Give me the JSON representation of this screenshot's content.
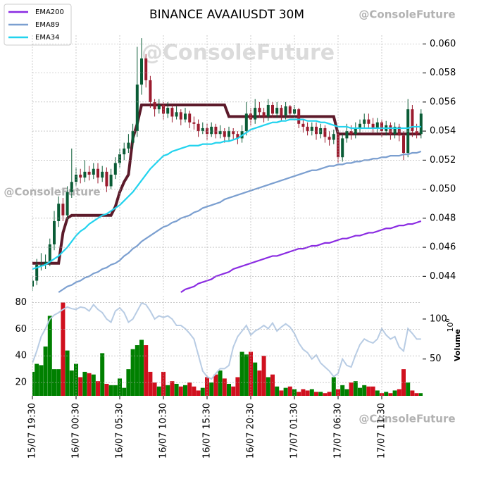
{
  "chart_data": {
    "type": "candlestick",
    "title": "BINANCE AVAAIUSDT 30M",
    "categories": [
      "15/07 19:30",
      null,
      null,
      null,
      null,
      null,
      null,
      null,
      null,
      null,
      "16/07 00:30",
      null,
      null,
      null,
      null,
      null,
      null,
      null,
      null,
      null,
      "16/07 05:30",
      null,
      null,
      null,
      null,
      null,
      null,
      null,
      null,
      null,
      "16/07 10:30",
      null,
      null,
      null,
      null,
      null,
      null,
      null,
      null,
      null,
      "16/07 15:30",
      null,
      null,
      null,
      null,
      null,
      null,
      null,
      null,
      null,
      "16/07 20:30",
      null,
      null,
      null,
      null,
      null,
      null,
      null,
      null,
      null,
      "17/07 01:30",
      null,
      null,
      null,
      null,
      null,
      null,
      null,
      null,
      null,
      "17/07 06:30",
      null,
      null,
      null,
      null,
      null,
      null,
      null,
      null,
      null,
      "17/07 11:30",
      null,
      null,
      null,
      null,
      null,
      null,
      null,
      null,
      null
    ],
    "open": [
      0.0433,
      0.0437,
      0.0448,
      0.0448,
      0.045,
      0.0462,
      0.0478,
      0.049,
      0.0482,
      0.0498,
      0.0505,
      0.051,
      0.0508,
      0.0512,
      0.051,
      0.0514,
      0.0508,
      0.0512,
      0.0502,
      0.051,
      0.0518,
      0.0524,
      0.0528,
      0.0532,
      0.054,
      0.0572,
      0.059,
      0.0575,
      0.056,
      0.0555,
      0.0558,
      0.0552,
      0.0556,
      0.055,
      0.0553,
      0.0548,
      0.0552,
      0.0546,
      0.0545,
      0.054,
      0.0542,
      0.0538,
      0.0543,
      0.0538,
      0.054,
      0.0536,
      0.054,
      0.0538,
      0.0535,
      0.054,
      0.0552,
      0.0548,
      0.0556,
      0.0553,
      0.055,
      0.0558,
      0.0552,
      0.0556,
      0.0551,
      0.0557,
      0.0552,
      0.0555,
      0.0545,
      0.0543,
      0.054,
      0.0543,
      0.0538,
      0.0542,
      0.0536,
      0.0534,
      0.0538,
      0.0522,
      0.0535,
      0.054,
      0.0538,
      0.0542,
      0.0545,
      0.0548,
      0.0545,
      0.0542,
      0.0546,
      0.054,
      0.0544,
      0.0538,
      0.0543,
      0.0537,
      0.0525,
      0.0555,
      0.054,
      0.0538
    ],
    "high": [
      0.044,
      0.0452,
      0.0456,
      0.0455,
      0.0466,
      0.0485,
      0.0495,
      0.0494,
      0.0502,
      0.0528,
      0.0515,
      0.0514,
      0.052,
      0.0516,
      0.0518,
      0.0518,
      0.0516,
      0.0515,
      0.0514,
      0.0522,
      0.0528,
      0.0532,
      0.0538,
      0.0545,
      0.0598,
      0.0604,
      0.0593,
      0.0578,
      0.0562,
      0.0562,
      0.056,
      0.056,
      0.0558,
      0.0557,
      0.0555,
      0.0556,
      0.0554,
      0.055,
      0.0548,
      0.0546,
      0.0545,
      0.0546,
      0.0545,
      0.0544,
      0.0542,
      0.0543,
      0.0542,
      0.054,
      0.0544,
      0.056,
      0.0556,
      0.0562,
      0.056,
      0.0556,
      0.0562,
      0.056,
      0.056,
      0.0558,
      0.056,
      0.0558,
      0.0558,
      0.0556,
      0.0548,
      0.0546,
      0.0546,
      0.0546,
      0.0545,
      0.0544,
      0.054,
      0.0541,
      0.054,
      0.0538,
      0.0545,
      0.0544,
      0.0546,
      0.0548,
      0.0552,
      0.0552,
      0.0549,
      0.0549,
      0.0548,
      0.0547,
      0.0546,
      0.0546,
      0.0545,
      0.054,
      0.0562,
      0.0558,
      0.0545,
      0.0555
    ],
    "low": [
      0.043,
      0.0434,
      0.0444,
      0.0445,
      0.0447,
      0.0458,
      0.0474,
      0.0478,
      0.0479,
      0.0494,
      0.0502,
      0.0504,
      0.0505,
      0.0506,
      0.0507,
      0.0504,
      0.0505,
      0.0498,
      0.05,
      0.0507,
      0.0515,
      0.052,
      0.0525,
      0.0528,
      0.0536,
      0.0565,
      0.057,
      0.0556,
      0.055,
      0.0552,
      0.0548,
      0.0549,
      0.0546,
      0.0548,
      0.0544,
      0.0546,
      0.0542,
      0.0541,
      0.0536,
      0.0538,
      0.0534,
      0.0536,
      0.0535,
      0.0535,
      0.0532,
      0.0533,
      0.0534,
      0.0531,
      0.0532,
      0.0537,
      0.0544,
      0.0545,
      0.0549,
      0.0546,
      0.0547,
      0.0549,
      0.0549,
      0.0547,
      0.0548,
      0.0549,
      0.0549,
      0.0542,
      0.0539,
      0.0537,
      0.0537,
      0.0534,
      0.0535,
      0.0532,
      0.053,
      0.0531,
      0.0518,
      0.0519,
      0.0532,
      0.0534,
      0.0535,
      0.0539,
      0.0542,
      0.0542,
      0.0539,
      0.0539,
      0.0536,
      0.0537,
      0.0534,
      0.0535,
      0.0533,
      0.052,
      0.0522,
      0.0536,
      0.0535,
      0.0535
    ],
    "close": [
      0.0437,
      0.0448,
      0.0448,
      0.045,
      0.0462,
      0.0478,
      0.049,
      0.0482,
      0.0498,
      0.0505,
      0.051,
      0.0508,
      0.0512,
      0.051,
      0.0514,
      0.0508,
      0.0512,
      0.0502,
      0.051,
      0.0518,
      0.0524,
      0.0528,
      0.0532,
      0.054,
      0.0572,
      0.059,
      0.0575,
      0.056,
      0.0555,
      0.0558,
      0.0552,
      0.0556,
      0.055,
      0.0553,
      0.0548,
      0.0552,
      0.0546,
      0.0545,
      0.054,
      0.0542,
      0.0538,
      0.0543,
      0.0538,
      0.054,
      0.0536,
      0.054,
      0.0538,
      0.0535,
      0.054,
      0.0552,
      0.0548,
      0.0556,
      0.0553,
      0.055,
      0.0558,
      0.0552,
      0.0556,
      0.0551,
      0.0557,
      0.0552,
      0.0555,
      0.0545,
      0.0543,
      0.054,
      0.0543,
      0.0538,
      0.0542,
      0.0536,
      0.0534,
      0.0538,
      0.0522,
      0.0535,
      0.054,
      0.0538,
      0.0542,
      0.0545,
      0.0548,
      0.0545,
      0.0542,
      0.0546,
      0.054,
      0.0544,
      0.0538,
      0.0543,
      0.0537,
      0.0525,
      0.0555,
      0.054,
      0.0538,
      0.0552
    ],
    "up_color": "#0a5c36",
    "down_color": "#9b1b2e",
    "series": [
      {
        "name": "EMA200",
        "color": "#8a2be2",
        "values": [
          null,
          null,
          null,
          null,
          null,
          null,
          null,
          null,
          null,
          null,
          null,
          null,
          null,
          null,
          null,
          null,
          null,
          null,
          null,
          null,
          null,
          null,
          null,
          null,
          null,
          null,
          null,
          null,
          null,
          null,
          null,
          null,
          null,
          null,
          0.0429,
          0.0431,
          0.0432,
          0.0433,
          0.0435,
          0.0436,
          0.0437,
          0.0438,
          0.044,
          0.0441,
          0.0442,
          0.0443,
          0.0445,
          0.0446,
          0.0447,
          0.0448,
          0.0449,
          0.045,
          0.0451,
          0.0452,
          0.0453,
          0.0454,
          0.0454,
          0.0455,
          0.0456,
          0.0457,
          0.0458,
          0.0459,
          0.0459,
          0.046,
          0.0461,
          0.0461,
          0.0462,
          0.0463,
          0.0463,
          0.0464,
          0.0465,
          0.0466,
          0.0466,
          0.0467,
          0.0468,
          0.0468,
          0.0469,
          0.047,
          0.047,
          0.0471,
          0.0472,
          0.0473,
          0.0473,
          0.0474,
          0.0475,
          0.0475,
          0.0476,
          0.0476,
          0.0477,
          0.0478
        ]
      },
      {
        "name": "EMA89",
        "color": "#7b9fd0",
        "values": [
          null,
          null,
          null,
          null,
          null,
          null,
          0.0429,
          0.0431,
          0.0433,
          0.0434,
          0.0436,
          0.0437,
          0.0439,
          0.044,
          0.0442,
          0.0443,
          0.0445,
          0.0446,
          0.0448,
          0.0449,
          0.0451,
          0.0454,
          0.0456,
          0.0459,
          0.0461,
          0.0464,
          0.0466,
          0.0468,
          0.047,
          0.0472,
          0.0474,
          0.0475,
          0.0477,
          0.0478,
          0.048,
          0.0481,
          0.0482,
          0.0484,
          0.0485,
          0.0487,
          0.0488,
          0.0489,
          0.049,
          0.0491,
          0.0493,
          0.0494,
          0.0495,
          0.0496,
          0.0497,
          0.0498,
          0.0499,
          0.05,
          0.0501,
          0.0502,
          0.0503,
          0.0504,
          0.0505,
          0.0506,
          0.0507,
          0.0508,
          0.0509,
          0.051,
          0.0511,
          0.0512,
          0.0513,
          0.0513,
          0.0514,
          0.0515,
          0.0516,
          0.0516,
          0.0517,
          0.0517,
          0.0518,
          0.0518,
          0.0519,
          0.0519,
          0.052,
          0.052,
          0.0521,
          0.0521,
          0.0522,
          0.0522,
          0.0523,
          0.0523,
          0.0523,
          0.0524,
          0.0524,
          0.0525,
          0.0525,
          0.0526
        ]
      },
      {
        "name": "EMA34",
        "color": "#22d3ee",
        "values": [
          0.0445,
          0.0446,
          0.0447,
          0.0448,
          0.045,
          0.0452,
          0.0454,
          0.0457,
          0.046,
          0.0464,
          0.0468,
          0.0471,
          0.0473,
          0.0476,
          0.0478,
          0.048,
          0.0482,
          0.0483,
          0.0485,
          0.0487,
          0.0489,
          0.0492,
          0.0495,
          0.0498,
          0.0502,
          0.0506,
          0.051,
          0.0514,
          0.0517,
          0.052,
          0.0523,
          0.0524,
          0.0526,
          0.0527,
          0.0528,
          0.0529,
          0.053,
          0.053,
          0.053,
          0.0531,
          0.0531,
          0.0531,
          0.0532,
          0.0532,
          0.0533,
          0.0533,
          0.0534,
          0.0535,
          0.0537,
          0.0539,
          0.0541,
          0.0542,
          0.0543,
          0.0544,
          0.0545,
          0.0546,
          0.0546,
          0.0547,
          0.0547,
          0.0548,
          0.0548,
          0.0548,
          0.0548,
          0.0547,
          0.0547,
          0.0547,
          0.0546,
          0.0546,
          0.0545,
          0.0544,
          0.0543,
          0.0543,
          0.0543,
          0.0542,
          0.0542,
          0.0542,
          0.0542,
          0.0542,
          0.0542,
          0.0542,
          0.0542,
          0.0542,
          0.0542,
          0.0542,
          0.0542,
          0.0542,
          0.0542,
          0.0543,
          0.0543,
          0.0543
        ]
      }
    ],
    "trend": {
      "color": "#5c1a2a",
      "values": [
        0.0449,
        0.0449,
        0.0449,
        0.0449,
        0.0449,
        0.0449,
        0.0449,
        0.047,
        0.048,
        0.0482,
        0.0482,
        0.0482,
        0.0482,
        0.0482,
        0.0482,
        0.0482,
        0.0482,
        0.0482,
        0.0482,
        0.0488,
        0.0498,
        0.0505,
        0.051,
        0.0535,
        0.0545,
        0.0558,
        0.0558,
        0.0558,
        0.0558,
        0.0558,
        0.0558,
        0.0558,
        0.0558,
        0.0558,
        0.0558,
        0.0558,
        0.0558,
        0.0558,
        0.0558,
        0.0558,
        0.0558,
        0.0558,
        0.0558,
        0.0558,
        0.0558,
        0.055,
        0.055,
        0.055,
        0.055,
        0.055,
        0.055,
        0.055,
        0.055,
        0.055,
        0.055,
        0.055,
        0.055,
        0.055,
        0.055,
        0.055,
        0.055,
        0.055,
        0.055,
        0.055,
        0.055,
        0.055,
        0.055,
        0.055,
        0.055,
        0.055,
        0.0538,
        0.0538,
        0.0538,
        0.0538,
        0.0538,
        0.0538,
        0.0538,
        0.0538,
        0.0538,
        0.0538,
        0.0538,
        0.0538,
        0.0538,
        0.0538,
        0.0538,
        0.0538,
        0.0538,
        0.0538,
        0.0538,
        0.0538
      ]
    },
    "ylim": [
      0.0429,
      0.0606
    ],
    "yticks": [
      {
        "value": 0.044,
        "label": "0.044"
      },
      {
        "value": 0.046,
        "label": "0.046"
      },
      {
        "value": 0.048,
        "label": "0.048"
      },
      {
        "value": 0.05,
        "label": "0.050"
      },
      {
        "value": 0.052,
        "label": "0.052"
      },
      {
        "value": 0.054,
        "label": "0.054"
      },
      {
        "value": 0.056,
        "label": "0.056"
      },
      {
        "value": 0.058,
        "label": "0.058"
      },
      {
        "value": 0.06,
        "label": "0.060"
      }
    ],
    "grid": true,
    "legend": "upper left",
    "watermarks": [
      "@ConsoleFuture",
      "@ConsoleFuture",
      "@ConsoleFuture",
      "@ConsoleFuture"
    ],
    "volume": {
      "type": "bar",
      "up_color": "#008000",
      "down_color": "#d0101e",
      "values": [
        28,
        34,
        33,
        47,
        70,
        30,
        30,
        80,
        44,
        29,
        34,
        24,
        28,
        27,
        26,
        21,
        42,
        19,
        18,
        18,
        23,
        16,
        30,
        45,
        48,
        52,
        48,
        28,
        20,
        17,
        28,
        18,
        21,
        19,
        17,
        18,
        20,
        17,
        14,
        16,
        24,
        20,
        26,
        29,
        23,
        19,
        17,
        24,
        43,
        41,
        43,
        35,
        29,
        40,
        24,
        26,
        17,
        14,
        16,
        17,
        15,
        13,
        15,
        14,
        15,
        13,
        13,
        12,
        13,
        24,
        15,
        18,
        15,
        20,
        21,
        16,
        18,
        17,
        17,
        14,
        12,
        13,
        12,
        14,
        15,
        30,
        20,
        14,
        12,
        12
      ],
      "ylim": [
        10,
        85
      ],
      "yticks": [
        20,
        40,
        60,
        80
      ],
      "line": {
        "color": "#b8cce4",
        "axis": "y2",
        "values": [
          45,
          60,
          78,
          88,
          100,
          105,
          108,
          112,
          115,
          113,
          112,
          115,
          114,
          110,
          118,
          112,
          108,
          100,
          96,
          110,
          114,
          108,
          96,
          100,
          110,
          120,
          118,
          110,
          100,
          104,
          102,
          104,
          100,
          92,
          92,
          88,
          82,
          75,
          55,
          35,
          28,
          25,
          32,
          38,
          38,
          42,
          65,
          78,
          85,
          92,
          80,
          85,
          88,
          92,
          88,
          95,
          85,
          90,
          94,
          90,
          82,
          70,
          62,
          58,
          50,
          55,
          45,
          40,
          35,
          28,
          32,
          50,
          42,
          40,
          55,
          68,
          75,
          72,
          70,
          75,
          88,
          80,
          75,
          78,
          65,
          60,
          88,
          82,
          75,
          75
        ]
      },
      "y2lim": [
        4,
        129
      ],
      "y2ticks": [
        50,
        100
      ],
      "y2label": "Volume",
      "y2_scale": {
        "base": "10",
        "exponent": "6"
      }
    }
  }
}
